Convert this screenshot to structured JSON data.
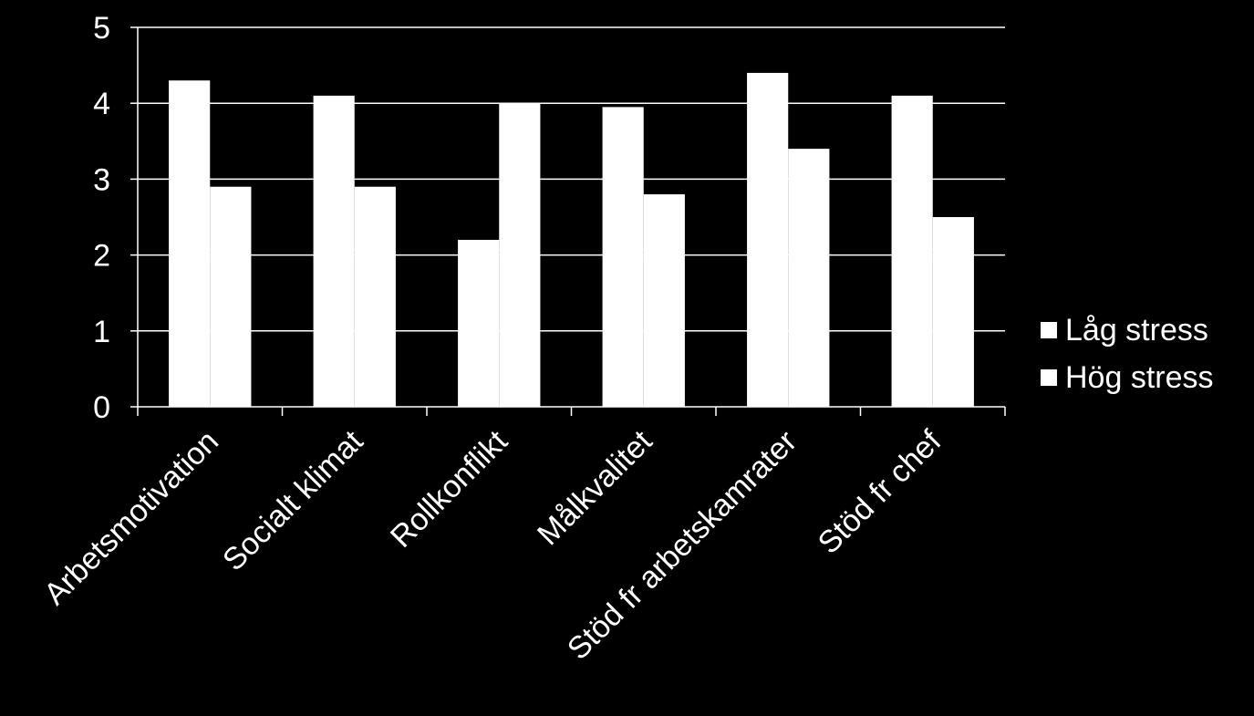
{
  "chart_data": {
    "type": "bar",
    "categories": [
      "Arbetsmotivation",
      "Socialt klimat",
      "Rollkonflikt",
      "Målkvalitet",
      "Stöd fr arbetskamrater",
      "Stöd fr chef"
    ],
    "series": [
      {
        "name": "Låg stress",
        "values": [
          4.3,
          4.1,
          2.2,
          3.95,
          4.4,
          4.1
        ]
      },
      {
        "name": "Hög stress",
        "values": [
          2.9,
          2.9,
          4.0,
          2.8,
          3.4,
          2.5
        ]
      }
    ],
    "title": "",
    "xlabel": "",
    "ylabel": "",
    "ylim": [
      0,
      5
    ],
    "yticks": [
      0,
      1,
      2,
      3,
      4,
      5
    ],
    "grid": true,
    "legend_position": "right",
    "colors": {
      "background": "#000000",
      "bars": "#ffffff",
      "text": "#ffffff",
      "gridlines": "#ffffff"
    }
  }
}
